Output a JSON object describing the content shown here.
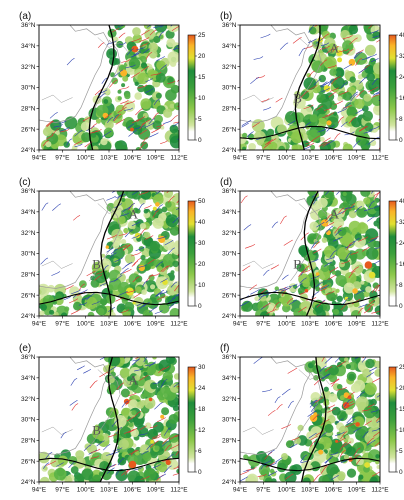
{
  "figure": {
    "x_ticks": [
      "94°E",
      "97°E",
      "100°E",
      "103°E",
      "106°E",
      "109°E",
      "112°E"
    ],
    "y_ticks": [
      "24°N",
      "26°N",
      "28°N",
      "30°N",
      "32°N",
      "34°N",
      "36°N"
    ],
    "panels": [
      {
        "label": "(a)",
        "colorbar": [
          "0",
          "5",
          "10",
          "15",
          "20",
          "25"
        ],
        "markers": []
      },
      {
        "label": "(b)",
        "colorbar": [
          "0",
          "8",
          "16",
          "24",
          "32",
          "40"
        ],
        "markers": [
          "A",
          "B"
        ]
      },
      {
        "label": "(c)",
        "colorbar": [
          "0",
          "10",
          "20",
          "30",
          "40",
          "50"
        ],
        "markers": [
          "A",
          "B"
        ]
      },
      {
        "label": "(d)",
        "colorbar": [
          "0",
          "8",
          "16",
          "24",
          "32",
          "40"
        ],
        "markers": [
          "A",
          "B"
        ]
      },
      {
        "label": "(e)",
        "colorbar": [
          "0",
          "6",
          "12",
          "18",
          "24",
          "30"
        ],
        "markers": [
          "A",
          "B"
        ]
      },
      {
        "label": "(f)",
        "colorbar": [
          "0",
          "5",
          "10",
          "15",
          "20",
          "25"
        ],
        "markers": []
      }
    ]
  },
  "colors": {
    "colorbar_stops": [
      "#ffffff",
      "#d2e6a0",
      "#8cc84b",
      "#3ca03c",
      "#1e8c3c",
      "#e1e132",
      "#fab428",
      "#e65a1e"
    ],
    "terrain_gray": "#999999",
    "wind_red": "#e03030",
    "wind_blue": "#2a3fb0",
    "contour": "#000000"
  }
}
